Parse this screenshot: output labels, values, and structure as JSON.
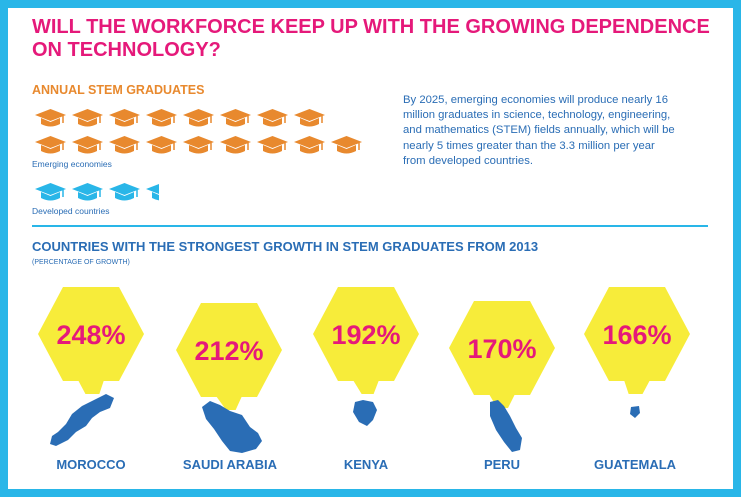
{
  "title": "WILL THE WORKFORCE KEEP UP WITH THE GROWING DEPENDENCE ON TECHNOLOGY?",
  "stem_section": {
    "heading": "ANNUAL STEM GRADUATES",
    "emerging_label": "Emerging economies",
    "developed_label": "Developed countries",
    "emerging_caps": 16,
    "developed_caps": 3.3
  },
  "info_text": "By 2025, emerging economies will produce nearly 16 million graduates in science, technology, engineering, and mathematics (STEM) fields annually, which will be nearly 5 times greater than the 3.3 million per year from developed countries.",
  "growth_section": {
    "heading": "COUNTRIES WITH THE STRONGEST GROWTH IN STEM GRADUATES FROM 2013",
    "subheading": "(PERCENTAGE OF GROWTH)",
    "countries": [
      {
        "name": "MOROCCO",
        "value": "248%"
      },
      {
        "name": "SAUDI ARABIA",
        "value": "212%"
      },
      {
        "name": "KENYA",
        "value": "192%"
      },
      {
        "name": "PERU",
        "value": "170%"
      },
      {
        "name": "GUATEMALA",
        "value": "166%"
      }
    ]
  },
  "colors": {
    "magenta": "#e5197a",
    "orange": "#e8892e",
    "blue": "#2a6db5",
    "cyan": "#29b6e8",
    "yellow": "#f7ec3a"
  }
}
